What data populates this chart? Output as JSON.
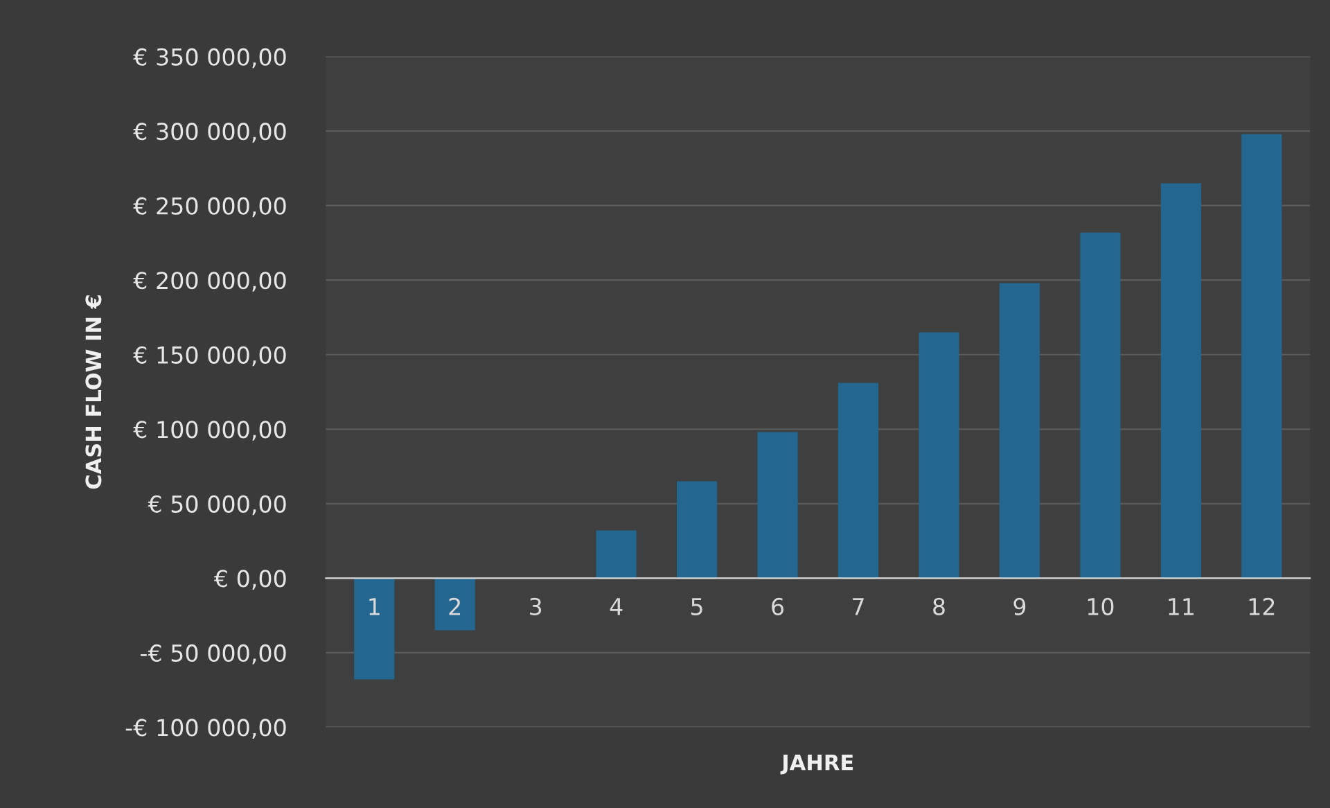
{
  "chart_data": {
    "type": "bar",
    "xlabel": "JAHRE",
    "ylabel": "CASH FLOW IN €",
    "categories": [
      "1",
      "2",
      "3",
      "4",
      "5",
      "6",
      "7",
      "8",
      "9",
      "10",
      "11",
      "12"
    ],
    "values": [
      -68000,
      -35000,
      0,
      32000,
      65000,
      98000,
      131000,
      165000,
      198000,
      232000,
      265000,
      298000
    ],
    "color": "#23668f",
    "ylim": [
      -100000,
      350000
    ],
    "yticks": [
      {
        "value": -100000,
        "label": "-€ 100 000,00"
      },
      {
        "value": -50000,
        "label": "-€ 50 000,00"
      },
      {
        "value": 0,
        "label": "€ 0,00"
      },
      {
        "value": 50000,
        "label": "€ 50 000,00"
      },
      {
        "value": 100000,
        "label": "€ 100 000,00"
      },
      {
        "value": 150000,
        "label": "€ 150 000,00"
      },
      {
        "value": 200000,
        "label": "€ 200 000,00"
      },
      {
        "value": 250000,
        "label": "€ 250 000,00"
      },
      {
        "value": 300000,
        "label": "€ 300 000,00"
      },
      {
        "value": 350000,
        "label": "€ 350 000,00"
      }
    ],
    "grid": "y"
  }
}
